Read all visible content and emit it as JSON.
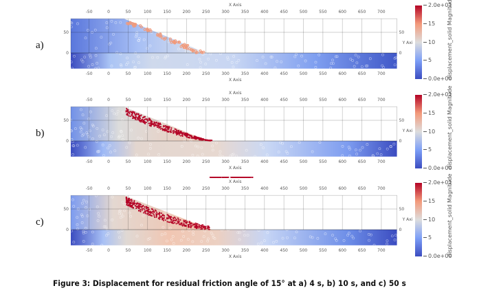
{
  "axes": {
    "x_label": "X Axis",
    "y_label": "Y Axis",
    "x_ticks": [
      -50,
      0,
      50,
      100,
      150,
      200,
      250,
      300,
      350,
      400,
      450,
      500,
      550,
      600,
      650,
      700
    ],
    "y_ticks": [
      0,
      50
    ],
    "x_range": [
      -97,
      740
    ],
    "y_range": [
      -38,
      83
    ]
  },
  "panels": [
    {
      "label": "a)",
      "runout_x": 250,
      "debris": "none"
    },
    {
      "label": "b)",
      "runout_x": 265,
      "debris": "dense"
    },
    {
      "label": "c)",
      "runout_x": 370,
      "debris": "spread"
    }
  ],
  "colorbar": {
    "title": "displacement_solid Magnitude",
    "ticks": [
      "2.0e+01",
      "15",
      "10",
      "5",
      "0.0e+00"
    ],
    "range": [
      0,
      20
    ],
    "colors": {
      "low": "#3b4cc0",
      "mid": "#dddddd",
      "high": "#b40426"
    }
  },
  "caption": "Figure 3: Displacement for residual friction angle of 15° at a) 4 s, b) 10 s, and c) 50 s"
}
